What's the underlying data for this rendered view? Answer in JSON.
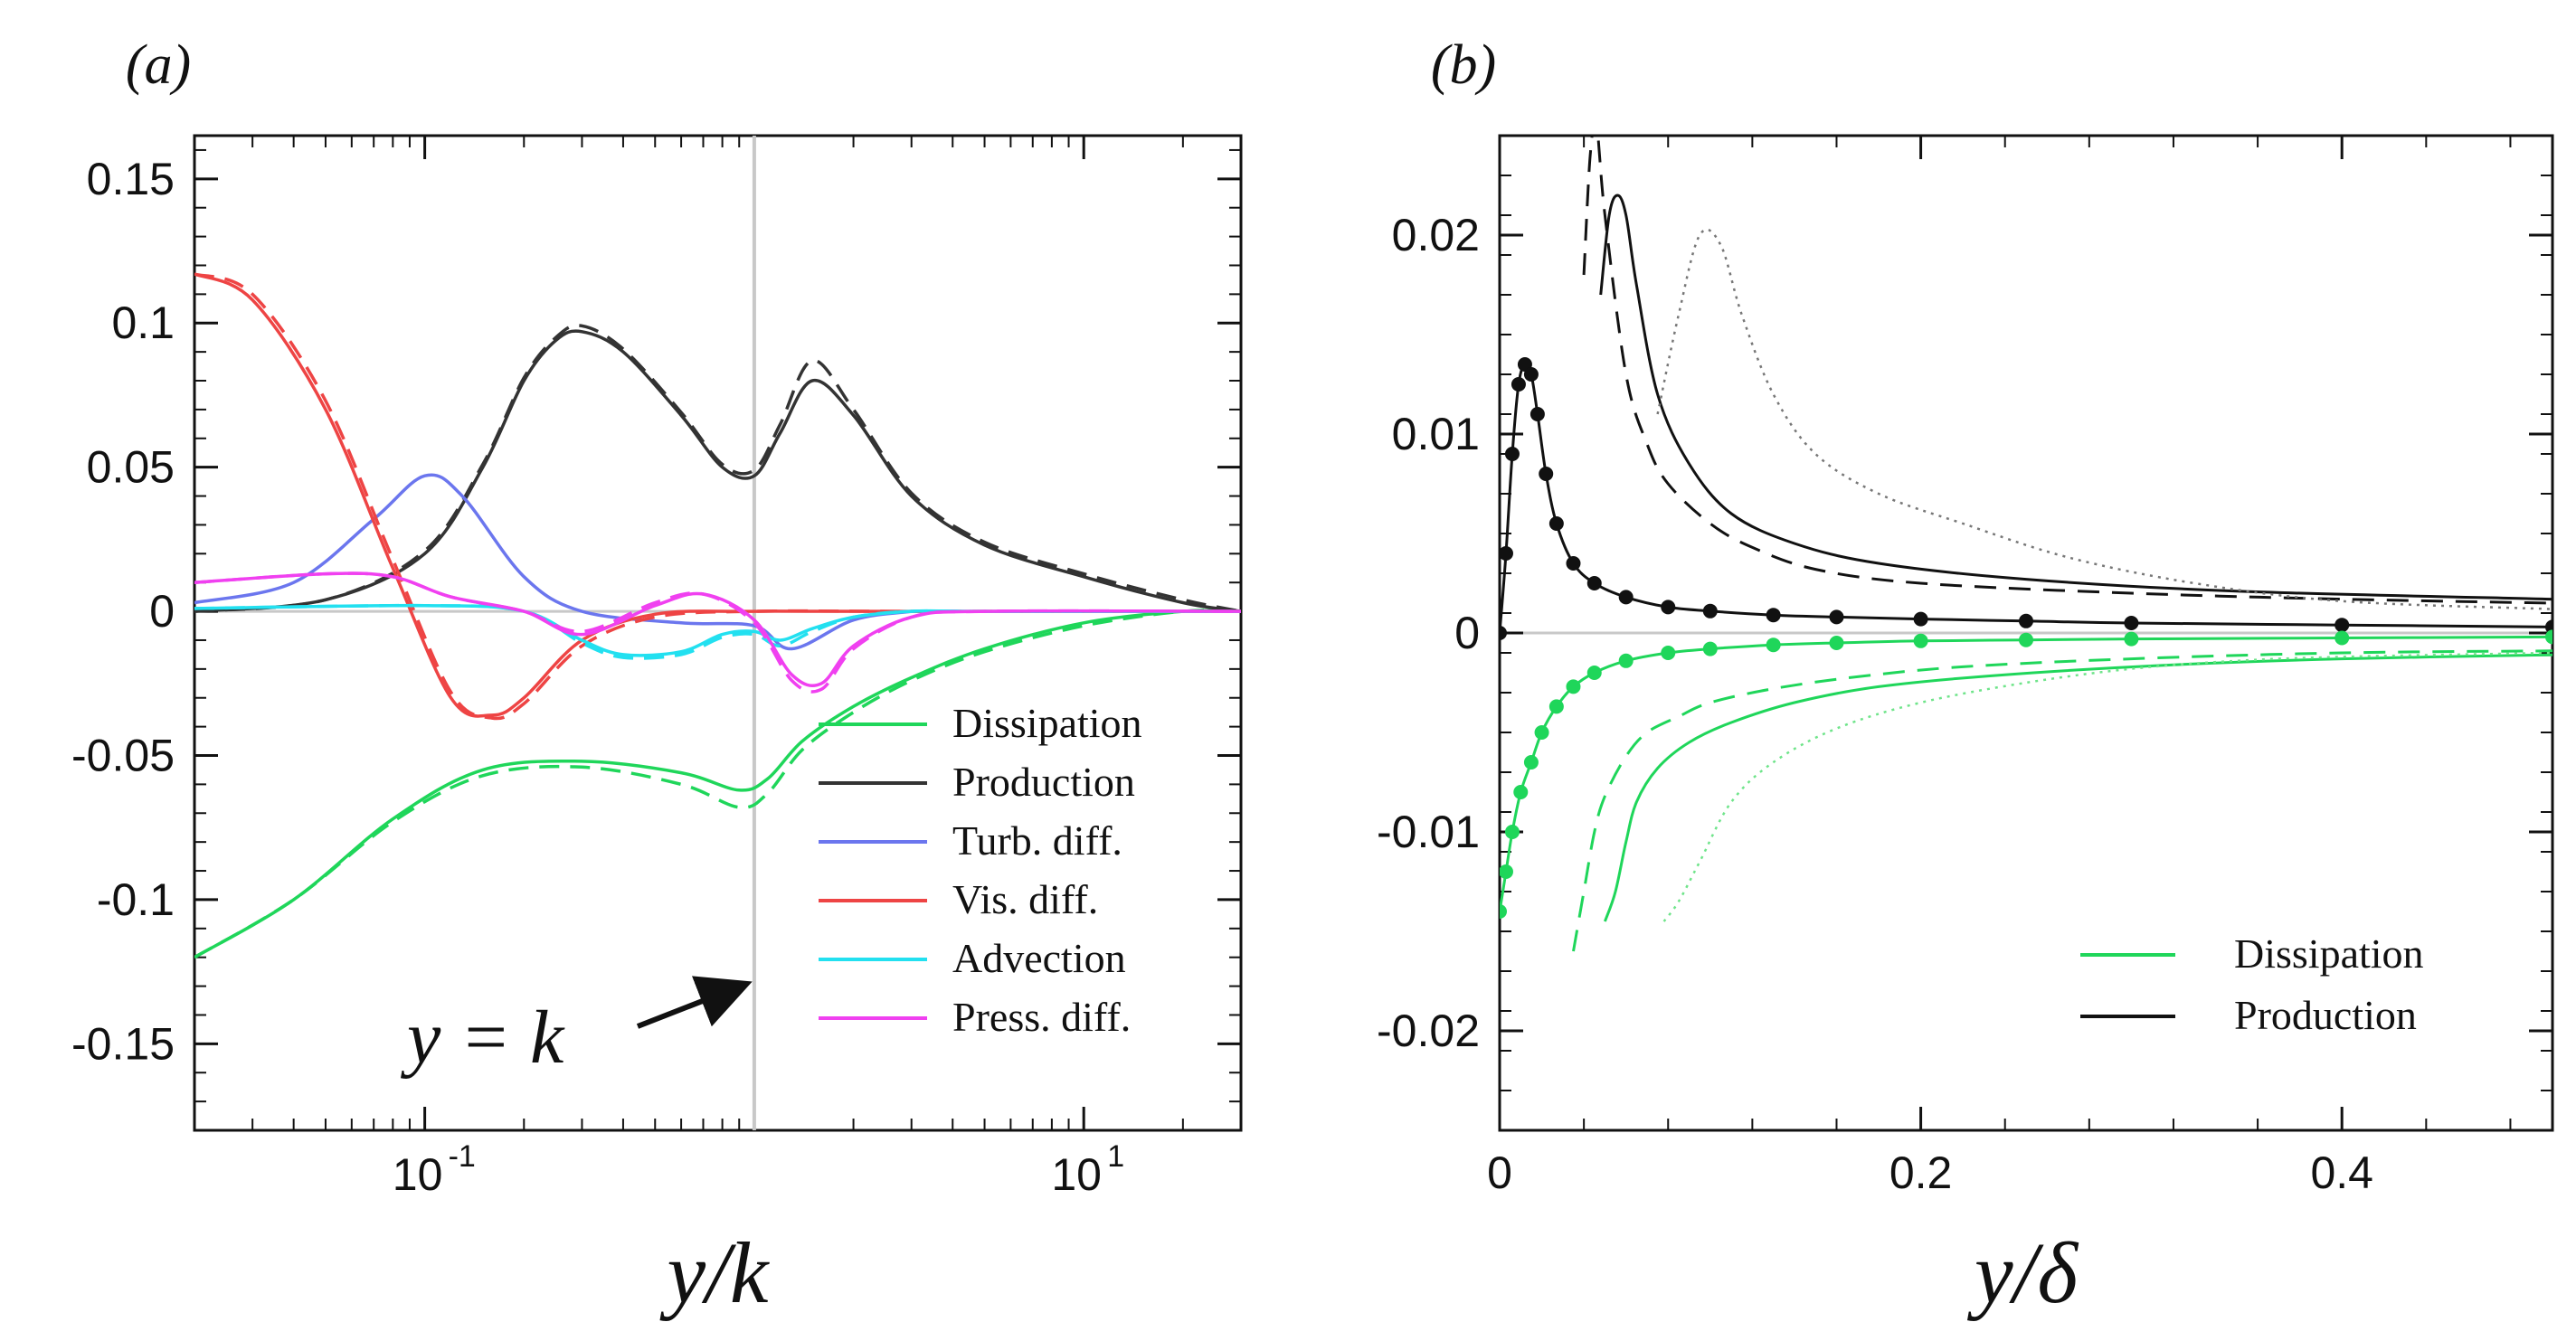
{
  "chart_data": [
    {
      "type": "line",
      "panel_label": "(a)",
      "xlabel": "y/k",
      "ylabel": "",
      "xscale": "log",
      "xlim": [
        0.02,
        30
      ],
      "ylim": [
        -0.18,
        0.165
      ],
      "xticks": [
        {
          "v": 0.1,
          "label": "10",
          "exp": "-1"
        },
        {
          "v": 10,
          "label": "10",
          "exp": "1"
        }
      ],
      "yticks": [
        {
          "v": 0.15,
          "label": "0.15"
        },
        {
          "v": 0.1,
          "label": "0.1"
        },
        {
          "v": 0.05,
          "label": "0.05"
        },
        {
          "v": 0,
          "label": "0"
        },
        {
          "v": -0.05,
          "label": "-0.05"
        },
        {
          "v": -0.1,
          "label": "-0.1"
        },
        {
          "v": -0.15,
          "label": "-0.15"
        }
      ],
      "reference_line": {
        "x": 1.0,
        "annotation": "y = k"
      },
      "legend_position": "bottom-right",
      "series": [
        {
          "name": "Dissipation",
          "color": "#1fd65a",
          "x": [
            0.02,
            0.04,
            0.08,
            0.15,
            0.3,
            0.6,
            0.9,
            1.1,
            1.4,
            2.0,
            3.0,
            5.0,
            10.0,
            20.0,
            30.0
          ],
          "y": [
            -0.12,
            -0.1,
            -0.072,
            -0.055,
            -0.052,
            -0.056,
            -0.062,
            -0.058,
            -0.045,
            -0.033,
            -0.023,
            -0.013,
            -0.004,
            0.0,
            0.0
          ],
          "y_dashed": [
            -0.12,
            -0.1,
            -0.073,
            -0.057,
            -0.054,
            -0.06,
            -0.068,
            -0.063,
            -0.048,
            -0.035,
            -0.024,
            -0.014,
            -0.005,
            0.0,
            0.0
          ]
        },
        {
          "name": "Production",
          "color": "#333333",
          "x": [
            0.02,
            0.05,
            0.1,
            0.15,
            0.2,
            0.25,
            0.3,
            0.4,
            0.6,
            0.8,
            1.0,
            1.2,
            1.5,
            2.0,
            3.0,
            5.0,
            10.0,
            20.0,
            30.0
          ],
          "y": [
            0.0,
            0.004,
            0.02,
            0.05,
            0.08,
            0.094,
            0.097,
            0.09,
            0.068,
            0.05,
            0.047,
            0.062,
            0.08,
            0.068,
            0.04,
            0.023,
            0.012,
            0.003,
            0.0
          ],
          "y_dashed": [
            0.0,
            0.004,
            0.021,
            0.051,
            0.081,
            0.095,
            0.099,
            0.091,
            0.069,
            0.051,
            0.049,
            0.065,
            0.087,
            0.07,
            0.041,
            0.024,
            0.013,
            0.004,
            0.0
          ]
        },
        {
          "name": "Turb. diff.",
          "color": "#6b76ee",
          "x": [
            0.02,
            0.04,
            0.07,
            0.1,
            0.13,
            0.2,
            0.3,
            0.6,
            1.0,
            1.3,
            2.0,
            3.0
          ],
          "y": [
            0.003,
            0.01,
            0.032,
            0.047,
            0.04,
            0.012,
            0.0,
            -0.004,
            -0.005,
            -0.013,
            -0.003,
            0.0
          ]
        },
        {
          "name": "Vis. diff.",
          "color": "#ee4444",
          "x": [
            0.02,
            0.03,
            0.05,
            0.08,
            0.12,
            0.16,
            0.2,
            0.3,
            0.5,
            1.0,
            3.0,
            30.0
          ],
          "y": [
            0.117,
            0.108,
            0.07,
            0.015,
            -0.03,
            -0.036,
            -0.03,
            -0.01,
            -0.001,
            0.0,
            0.0,
            0.0
          ],
          "y_dashed": [
            0.117,
            0.11,
            0.073,
            0.018,
            -0.028,
            -0.037,
            -0.032,
            -0.012,
            -0.002,
            0.0,
            0.0,
            0.0
          ]
        },
        {
          "name": "Advection",
          "color": "#22e0f0",
          "x": [
            0.02,
            0.1,
            0.2,
            0.3,
            0.4,
            0.6,
            0.8,
            1.0,
            1.2,
            1.5,
            2.0,
            3.0,
            5.0,
            30.0
          ],
          "y": [
            0.001,
            0.002,
            0.0,
            -0.01,
            -0.015,
            -0.014,
            -0.008,
            -0.007,
            -0.01,
            -0.006,
            -0.002,
            0.0,
            0.0,
            0.0
          ],
          "y_dashed": [
            0.001,
            0.002,
            0.0,
            -0.011,
            -0.016,
            -0.015,
            -0.009,
            -0.008,
            -0.012,
            -0.007,
            -0.002,
            0.0,
            0.0,
            0.0
          ]
        },
        {
          "name": "Press. diff.",
          "color": "#f040f0",
          "x": [
            0.02,
            0.05,
            0.08,
            0.12,
            0.2,
            0.3,
            0.5,
            0.7,
            1.0,
            1.3,
            1.6,
            2.0,
            3.0,
            5.0,
            30.0
          ],
          "y": [
            0.01,
            0.013,
            0.012,
            0.005,
            0.0,
            -0.008,
            0.002,
            0.006,
            -0.003,
            -0.022,
            -0.025,
            -0.012,
            -0.002,
            0.0,
            0.0
          ],
          "y_dashed": [
            0.01,
            0.013,
            0.012,
            0.005,
            0.0,
            -0.007,
            0.003,
            0.006,
            -0.004,
            -0.024,
            -0.027,
            -0.013,
            -0.002,
            0.0,
            0.0
          ]
        }
      ]
    },
    {
      "type": "line",
      "panel_label": "(b)",
      "xlabel": "y/δ",
      "ylabel": "",
      "xscale": "linear",
      "xlim": [
        0,
        0.5
      ],
      "ylim": [
        -0.025,
        0.025
      ],
      "xticks": [
        {
          "v": 0,
          "label": "0"
        },
        {
          "v": 0.2,
          "label": "0.2"
        },
        {
          "v": 0.4,
          "label": "0.4"
        }
      ],
      "yticks": [
        {
          "v": 0.02,
          "label": "0.02"
        },
        {
          "v": 0.01,
          "label": "0.01"
        },
        {
          "v": 0,
          "label": "0"
        },
        {
          "v": -0.01,
          "label": "-0.01"
        },
        {
          "v": -0.02,
          "label": "-0.02"
        }
      ],
      "legend_position": "bottom-right",
      "legend": [
        "Dissipation",
        "Production"
      ],
      "series": [
        {
          "name": "Production",
          "color": "#111111",
          "style": "solid-dots",
          "x": [
            0.0,
            0.003,
            0.006,
            0.009,
            0.012,
            0.015,
            0.018,
            0.022,
            0.027,
            0.035,
            0.045,
            0.06,
            0.08,
            0.1,
            0.13,
            0.16,
            0.2,
            0.25,
            0.3,
            0.4,
            0.5
          ],
          "y": [
            0.0,
            0.004,
            0.009,
            0.0125,
            0.0135,
            0.013,
            0.011,
            0.008,
            0.0055,
            0.0035,
            0.0025,
            0.0018,
            0.0013,
            0.0011,
            0.0009,
            0.0008,
            0.0007,
            0.0006,
            0.0005,
            0.0004,
            0.0003
          ]
        },
        {
          "name": "Production",
          "color": "#111111",
          "style": "dashed",
          "x": [
            0.04,
            0.043,
            0.046,
            0.05,
            0.06,
            0.07,
            0.08,
            0.1,
            0.12,
            0.15,
            0.2,
            0.3,
            0.4,
            0.5
          ],
          "y": [
            0.018,
            0.024,
            0.0255,
            0.021,
            0.013,
            0.0095,
            0.0075,
            0.0055,
            0.0043,
            0.0032,
            0.0025,
            0.002,
            0.0017,
            0.0015
          ]
        },
        {
          "name": "Production",
          "color": "#111111",
          "style": "solid",
          "x": [
            0.048,
            0.052,
            0.056,
            0.06,
            0.065,
            0.075,
            0.09,
            0.11,
            0.14,
            0.18,
            0.25,
            0.35,
            0.5
          ],
          "y": [
            0.017,
            0.021,
            0.022,
            0.021,
            0.0175,
            0.012,
            0.0085,
            0.006,
            0.0045,
            0.0035,
            0.0027,
            0.0021,
            0.0017
          ]
        },
        {
          "name": "Production",
          "color": "#777777",
          "style": "dotted",
          "x": [
            0.075,
            0.085,
            0.095,
            0.105,
            0.115,
            0.13,
            0.15,
            0.18,
            0.22,
            0.27,
            0.33,
            0.4,
            0.5
          ],
          "y": [
            0.011,
            0.016,
            0.02,
            0.0195,
            0.016,
            0.012,
            0.009,
            0.007,
            0.0055,
            0.0038,
            0.0025,
            0.0016,
            0.0012
          ]
        },
        {
          "name": "Dissipation",
          "color": "#1fd65a",
          "style": "solid-dots",
          "x": [
            0.0,
            0.003,
            0.006,
            0.01,
            0.015,
            0.02,
            0.027,
            0.035,
            0.045,
            0.06,
            0.08,
            0.1,
            0.13,
            0.16,
            0.2,
            0.25,
            0.3,
            0.4,
            0.5
          ],
          "y": [
            -0.014,
            -0.012,
            -0.01,
            -0.008,
            -0.0065,
            -0.005,
            -0.0037,
            -0.0027,
            -0.002,
            -0.0014,
            -0.001,
            -0.0008,
            -0.0006,
            -0.0005,
            -0.0004,
            -0.00035,
            -0.0003,
            -0.00025,
            -0.0002
          ]
        },
        {
          "name": "Dissipation",
          "color": "#1fd65a",
          "style": "dashed",
          "x": [
            0.035,
            0.04,
            0.045,
            0.05,
            0.06,
            0.07,
            0.085,
            0.1,
            0.13,
            0.17,
            0.22,
            0.3,
            0.4,
            0.5
          ],
          "y": [
            -0.016,
            -0.013,
            -0.01,
            -0.0082,
            -0.0062,
            -0.005,
            -0.0042,
            -0.0035,
            -0.0028,
            -0.0022,
            -0.0017,
            -0.0013,
            -0.001,
            -0.0009
          ]
        },
        {
          "name": "Dissipation",
          "color": "#1fd65a",
          "style": "solid",
          "x": [
            0.05,
            0.055,
            0.06,
            0.065,
            0.075,
            0.09,
            0.11,
            0.14,
            0.18,
            0.24,
            0.32,
            0.4,
            0.5
          ],
          "y": [
            -0.0145,
            -0.013,
            -0.0105,
            -0.0085,
            -0.0068,
            -0.0055,
            -0.0045,
            -0.0035,
            -0.0027,
            -0.0021,
            -0.0016,
            -0.0013,
            -0.0011
          ]
        },
        {
          "name": "Dissipation",
          "color": "#6fe48a",
          "style": "dotted",
          "x": [
            0.078,
            0.085,
            0.095,
            0.11,
            0.13,
            0.16,
            0.2,
            0.25,
            0.3,
            0.35,
            0.4,
            0.5
          ],
          "y": [
            -0.0145,
            -0.0135,
            -0.0115,
            -0.0085,
            -0.0065,
            -0.0048,
            -0.0035,
            -0.0025,
            -0.0018,
            -0.0014,
            -0.0012,
            -0.001
          ]
        }
      ]
    }
  ]
}
